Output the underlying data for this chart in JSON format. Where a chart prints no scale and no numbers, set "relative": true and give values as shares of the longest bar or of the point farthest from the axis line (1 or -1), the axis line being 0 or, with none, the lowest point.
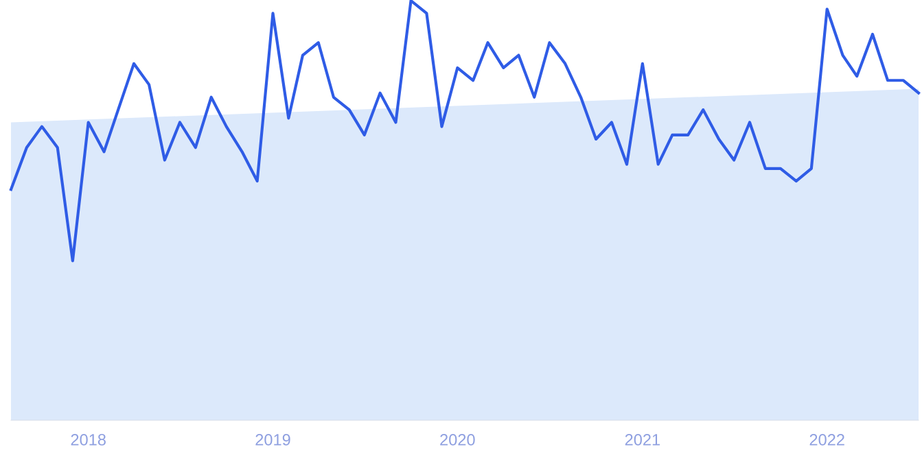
{
  "chart_data": {
    "type": "line",
    "relative": true,
    "marker": "none",
    "line_style": "solid",
    "x": [
      "2017-08",
      "2017-09",
      "2017-10",
      "2017-11",
      "2017-12",
      "2018-01",
      "2018-02",
      "2018-03",
      "2018-04",
      "2018-05",
      "2018-06",
      "2018-07",
      "2018-08",
      "2018-09",
      "2018-10",
      "2018-11",
      "2018-12",
      "2019-01",
      "2019-02",
      "2019-03",
      "2019-04",
      "2019-05",
      "2019-06",
      "2019-07",
      "2019-08",
      "2019-09",
      "2019-10",
      "2019-11",
      "2019-12",
      "2020-01",
      "2020-02",
      "2020-03",
      "2020-04",
      "2020-05",
      "2020-06",
      "2020-07",
      "2020-08",
      "2020-09",
      "2020-10",
      "2020-11",
      "2020-12",
      "2021-01",
      "2021-02",
      "2021-03",
      "2021-04",
      "2021-05",
      "2021-06",
      "2021-07",
      "2021-08",
      "2021-09",
      "2021-10",
      "2021-11",
      "2021-12",
      "2022-01",
      "2022-02",
      "2022-03",
      "2022-04",
      "2022-05",
      "2022-06",
      "2022-07"
    ],
    "xlim": [
      "2017-08",
      "2022-07"
    ],
    "xticks": [
      {
        "value": "2018-01",
        "label": "2018"
      },
      {
        "value": "2019-01",
        "label": "2019"
      },
      {
        "value": "2020-01",
        "label": "2020"
      },
      {
        "value": "2021-01",
        "label": "2021"
      },
      {
        "value": "2022-01",
        "label": "2022"
      }
    ],
    "series": [
      {
        "type": "area",
        "color": "#dce9fb",
        "x": [
          "2017-08",
          "2022-07"
        ],
        "values": [
          0.71,
          0.79
        ]
      },
      {
        "color": "#2f5ce6",
        "values": [
          0.55,
          0.65,
          0.7,
          0.65,
          0.38,
          0.71,
          0.64,
          0.74,
          0.85,
          0.8,
          0.62,
          0.71,
          0.65,
          0.77,
          0.7,
          0.64,
          0.57,
          0.97,
          0.72,
          0.87,
          0.9,
          0.77,
          0.74,
          0.68,
          0.78,
          0.71,
          1.0,
          0.97,
          0.7,
          0.84,
          0.81,
          0.9,
          0.84,
          0.87,
          0.77,
          0.9,
          0.85,
          0.77,
          0.67,
          0.71,
          0.61,
          0.85,
          0.61,
          0.68,
          0.68,
          0.74,
          0.67,
          0.62,
          0.71,
          0.6,
          0.6,
          0.57,
          0.6,
          0.98,
          0.87,
          0.82,
          0.92,
          0.81,
          0.81,
          0.78
        ]
      }
    ]
  }
}
